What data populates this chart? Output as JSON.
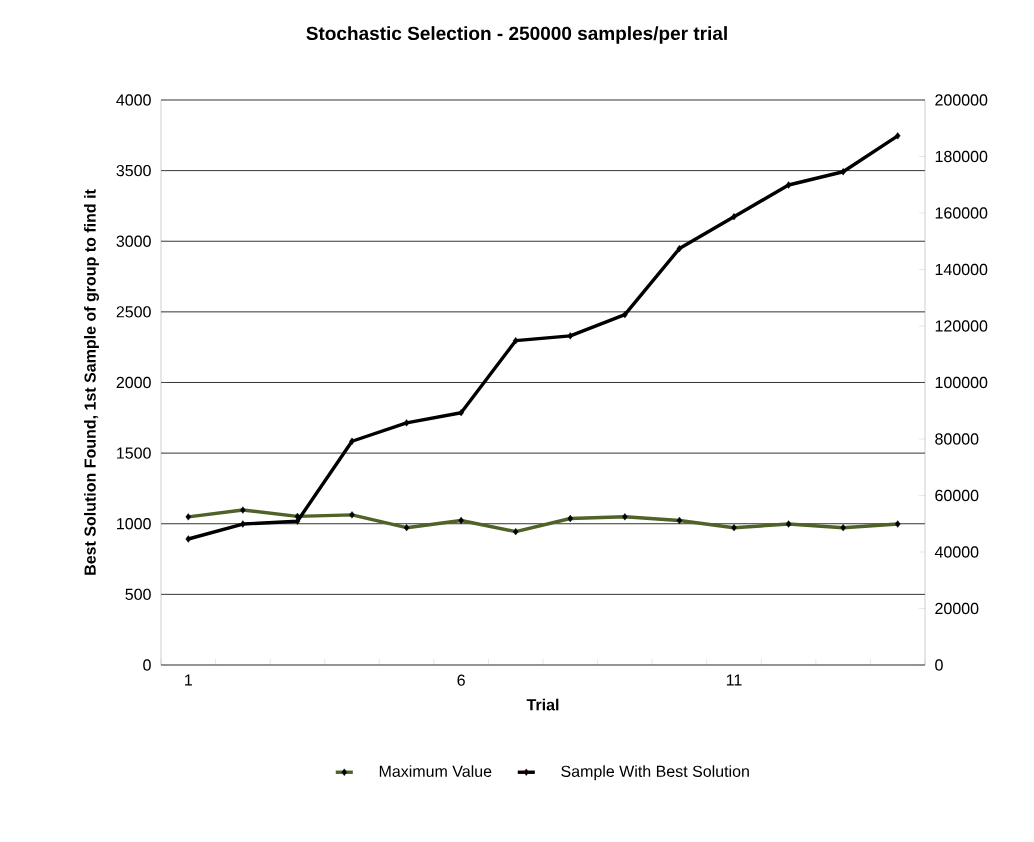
{
  "chart_data": {
    "type": "line",
    "title": "Stochastic Selection  - 250000 samples/per trial",
    "xlabel": "Trial",
    "ylabel": "Best Solution Found,  1st Sample of group to find it",
    "categories": [
      "1",
      null,
      null,
      null,
      null,
      "6",
      null,
      null,
      null,
      null,
      "11",
      null,
      null,
      null
    ],
    "series": [
      {
        "name": "Maximum Value",
        "color": "#4f6228",
        "values": [
          1049,
          1097,
          1052,
          1063,
          972,
          1023,
          944,
          1037,
          1049,
          1023,
          972,
          998,
          972,
          998
        ]
      },
      {
        "name": "Sample With Best Solution",
        "color": "#000000",
        "axis": "y2",
        "values": [
          44600,
          49900,
          50900,
          79200,
          85700,
          89300,
          114800,
          116500,
          124000,
          147400,
          158700,
          169900,
          174600,
          187300
        ]
      }
    ],
    "ylim": [
      0,
      4000
    ],
    "yticks": [
      0,
      500,
      1000,
      1500,
      2000,
      2500,
      3000,
      3500,
      4000
    ],
    "y2lim": [
      0,
      200000
    ],
    "y2ticks": [
      0,
      20000,
      40000,
      60000,
      80000,
      100000,
      120000,
      140000,
      160000,
      180000,
      200000
    ],
    "grid": "y",
    "legend": "bottom",
    "marker": "diamond",
    "line_style": "solid"
  }
}
